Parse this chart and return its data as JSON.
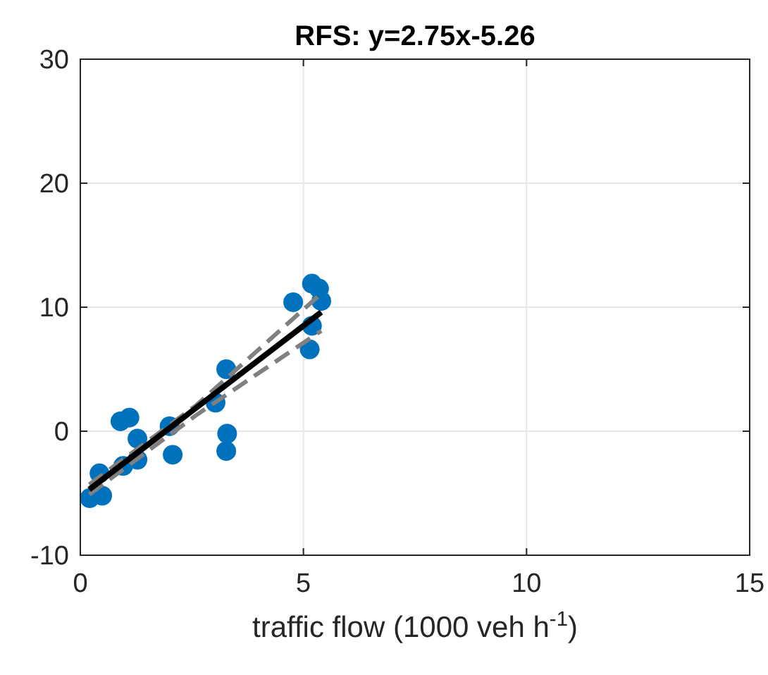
{
  "chart_data": {
    "type": "scatter",
    "title": "RFS: y=2.75x-5.26",
    "xlabel": "traffic flow (1000 veh h$^{-1}$)",
    "xlim": [
      0,
      15
    ],
    "xticks": [
      0,
      5,
      10,
      15
    ],
    "ylim": [
      -10,
      30
    ],
    "yticks": [
      -10,
      0,
      10,
      20,
      30
    ],
    "grid": true,
    "marker": "circle",
    "series": [
      {
        "color": "#0072bd",
        "x": [
          0.21,
          0.49,
          0.43,
          0.96,
          0.9,
          1.1,
          1.28,
          1.28,
          2.0,
          2.07,
          3.03,
          3.27,
          3.29,
          3.27,
          4.77,
          5.19,
          5.35,
          5.4,
          5.19,
          5.14
        ],
        "values": [
          -5.4,
          -5.2,
          -3.4,
          -2.8,
          0.8,
          1.1,
          -0.6,
          -2.3,
          0.4,
          -1.9,
          2.3,
          5.0,
          -0.2,
          -1.6,
          10.4,
          11.9,
          11.5,
          10.5,
          8.5,
          6.6
        ]
      },
      {
        "type": "line",
        "color": "#808080",
        "line_style": "dashed",
        "marker": "none",
        "x": [
          0.2,
          2.6,
          5.4
        ],
        "values": [
          -4.3,
          2.1,
          11.1
        ]
      },
      {
        "type": "line",
        "color": "#808080",
        "line_style": "dashed",
        "marker": "none",
        "x": [
          0.2,
          2.6,
          5.4
        ],
        "values": [
          -5.1,
          1.3,
          8.1
        ]
      },
      {
        "type": "line",
        "color": "#000000",
        "line_style": "solid",
        "marker": "none",
        "x": [
          0.2,
          5.4
        ],
        "values": [
          -4.7,
          9.6
        ]
      }
    ]
  }
}
